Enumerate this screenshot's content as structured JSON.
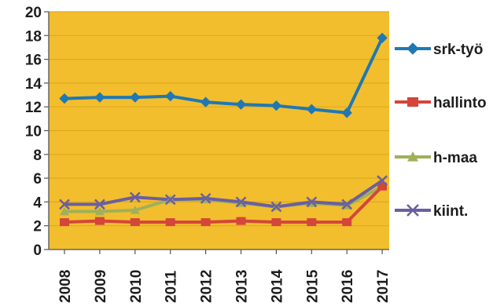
{
  "chart_data": {
    "type": "line",
    "title": "",
    "xlabel": "",
    "ylabel": "",
    "categories": [
      "2008",
      "2009",
      "2010",
      "2011",
      "2012",
      "2013",
      "2014",
      "2015",
      "2016",
      "2017"
    ],
    "ylim": [
      0,
      20
    ],
    "yticks": [
      0,
      2,
      4,
      6,
      8,
      10,
      12,
      14,
      16,
      18,
      20
    ],
    "grid": true,
    "legend_position": "right",
    "plot_background": "#F2BE2E",
    "gridline_color": "#E0A81E",
    "series": [
      {
        "name": "srk-työ",
        "color": "#1F78B4",
        "marker": "diamond",
        "values": [
          12.7,
          12.8,
          12.8,
          12.9,
          12.4,
          12.2,
          12.1,
          11.8,
          11.5,
          17.8
        ]
      },
      {
        "name": "hallinto",
        "color": "#D4453A",
        "marker": "square",
        "values": [
          2.3,
          2.4,
          2.3,
          2.3,
          2.3,
          2.4,
          2.3,
          2.3,
          2.3,
          5.3
        ]
      },
      {
        "name": "h-maa",
        "color": "#9FB05A",
        "marker": "triangle",
        "values": [
          3.2,
          3.2,
          3.3,
          4.2,
          4.2,
          3.9,
          3.6,
          3.9,
          3.7,
          5.3
        ]
      },
      {
        "name": "kiint.",
        "color": "#6A5FA0",
        "marker": "x",
        "values": [
          3.8,
          3.8,
          4.4,
          4.2,
          4.3,
          4.0,
          3.6,
          4.0,
          3.8,
          5.8
        ]
      }
    ]
  }
}
